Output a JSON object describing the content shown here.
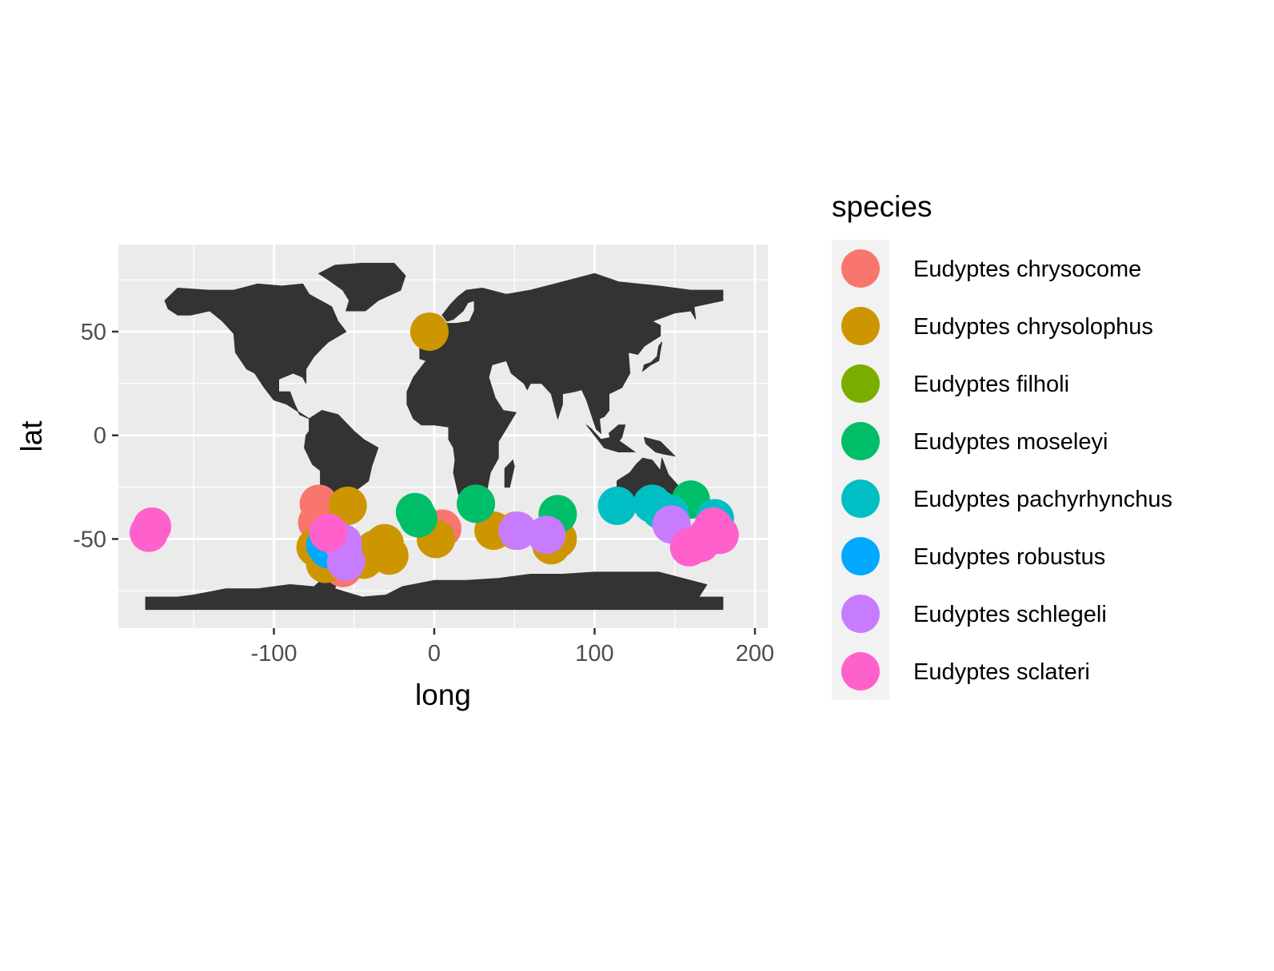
{
  "chart_data": {
    "type": "scatter",
    "xlabel": "long",
    "ylabel": "lat",
    "xlim": [
      -197,
      208
    ],
    "ylim": [
      -93,
      92
    ],
    "x_ticks": [
      -100,
      0,
      100,
      200
    ],
    "x_tick_labels": [
      "-100",
      "0",
      "100",
      "200"
    ],
    "y_ticks": [
      -50,
      0,
      50
    ],
    "y_tick_labels": [
      "-50",
      "0",
      "50"
    ],
    "x_minor": [
      -150,
      -50,
      50,
      150
    ],
    "y_minor": [
      -75,
      -25,
      25,
      75
    ],
    "background": "#EBEBEB",
    "grid": true,
    "basemap": "world",
    "land_color": "#333333",
    "legend": {
      "title": "species",
      "position": "right"
    },
    "series": [
      {
        "name": "Eudyptes chrysocome",
        "color": "#F8766D",
        "points": [
          [
            -72,
            -33
          ],
          [
            -73,
            -42
          ],
          [
            -68,
            -54
          ],
          [
            -57,
            -52
          ],
          [
            -57,
            -64
          ],
          [
            5,
            -45
          ]
        ]
      },
      {
        "name": "Eudyptes chrysolophus",
        "color": "#CD9600",
        "points": [
          [
            -3,
            50
          ],
          [
            -54,
            -34
          ],
          [
            -74,
            -54
          ],
          [
            -68,
            -62
          ],
          [
            -44,
            -60
          ],
          [
            -37,
            -55
          ],
          [
            -31,
            -52
          ],
          [
            -28,
            -58
          ],
          [
            1,
            -50
          ],
          [
            37,
            -46
          ],
          [
            51,
            -46
          ],
          [
            73,
            -53
          ],
          [
            77,
            -50
          ]
        ]
      },
      {
        "name": "Eudyptes filholi",
        "color": "#7CAE00",
        "points": [
          [
            165,
            -52
          ]
        ]
      },
      {
        "name": "Eudyptes moseleyi",
        "color": "#00BE67",
        "points": [
          [
            -12,
            -37
          ],
          [
            -10,
            -40
          ],
          [
            26,
            -33
          ],
          [
            77,
            -38
          ],
          [
            160,
            -31
          ]
        ]
      },
      {
        "name": "Eudyptes pachyrhynchus",
        "color": "#00BFC4",
        "points": [
          [
            114,
            -34
          ],
          [
            136,
            -33
          ],
          [
            141,
            -36
          ],
          [
            147,
            -38
          ],
          [
            175,
            -40
          ]
        ]
      },
      {
        "name": "Eudyptes robustus",
        "color": "#00A9FF",
        "points": [
          [
            -68,
            -53
          ],
          [
            -66,
            -55
          ]
        ]
      },
      {
        "name": "Eudyptes schlegeli",
        "color": "#C77CFF",
        "points": [
          [
            -57,
            -52
          ],
          [
            -55,
            -61
          ],
          [
            52,
            -46
          ],
          [
            70,
            -48
          ],
          [
            148,
            -43
          ]
        ]
      },
      {
        "name": "Eudyptes sclateri",
        "color": "#FF61CC",
        "points": [
          [
            -178,
            -47
          ],
          [
            -176,
            -44
          ],
          [
            -66,
            -47
          ],
          [
            159,
            -54
          ],
          [
            166,
            -52
          ],
          [
            171,
            -48
          ],
          [
            174,
            -44
          ],
          [
            178,
            -48
          ]
        ]
      }
    ]
  }
}
